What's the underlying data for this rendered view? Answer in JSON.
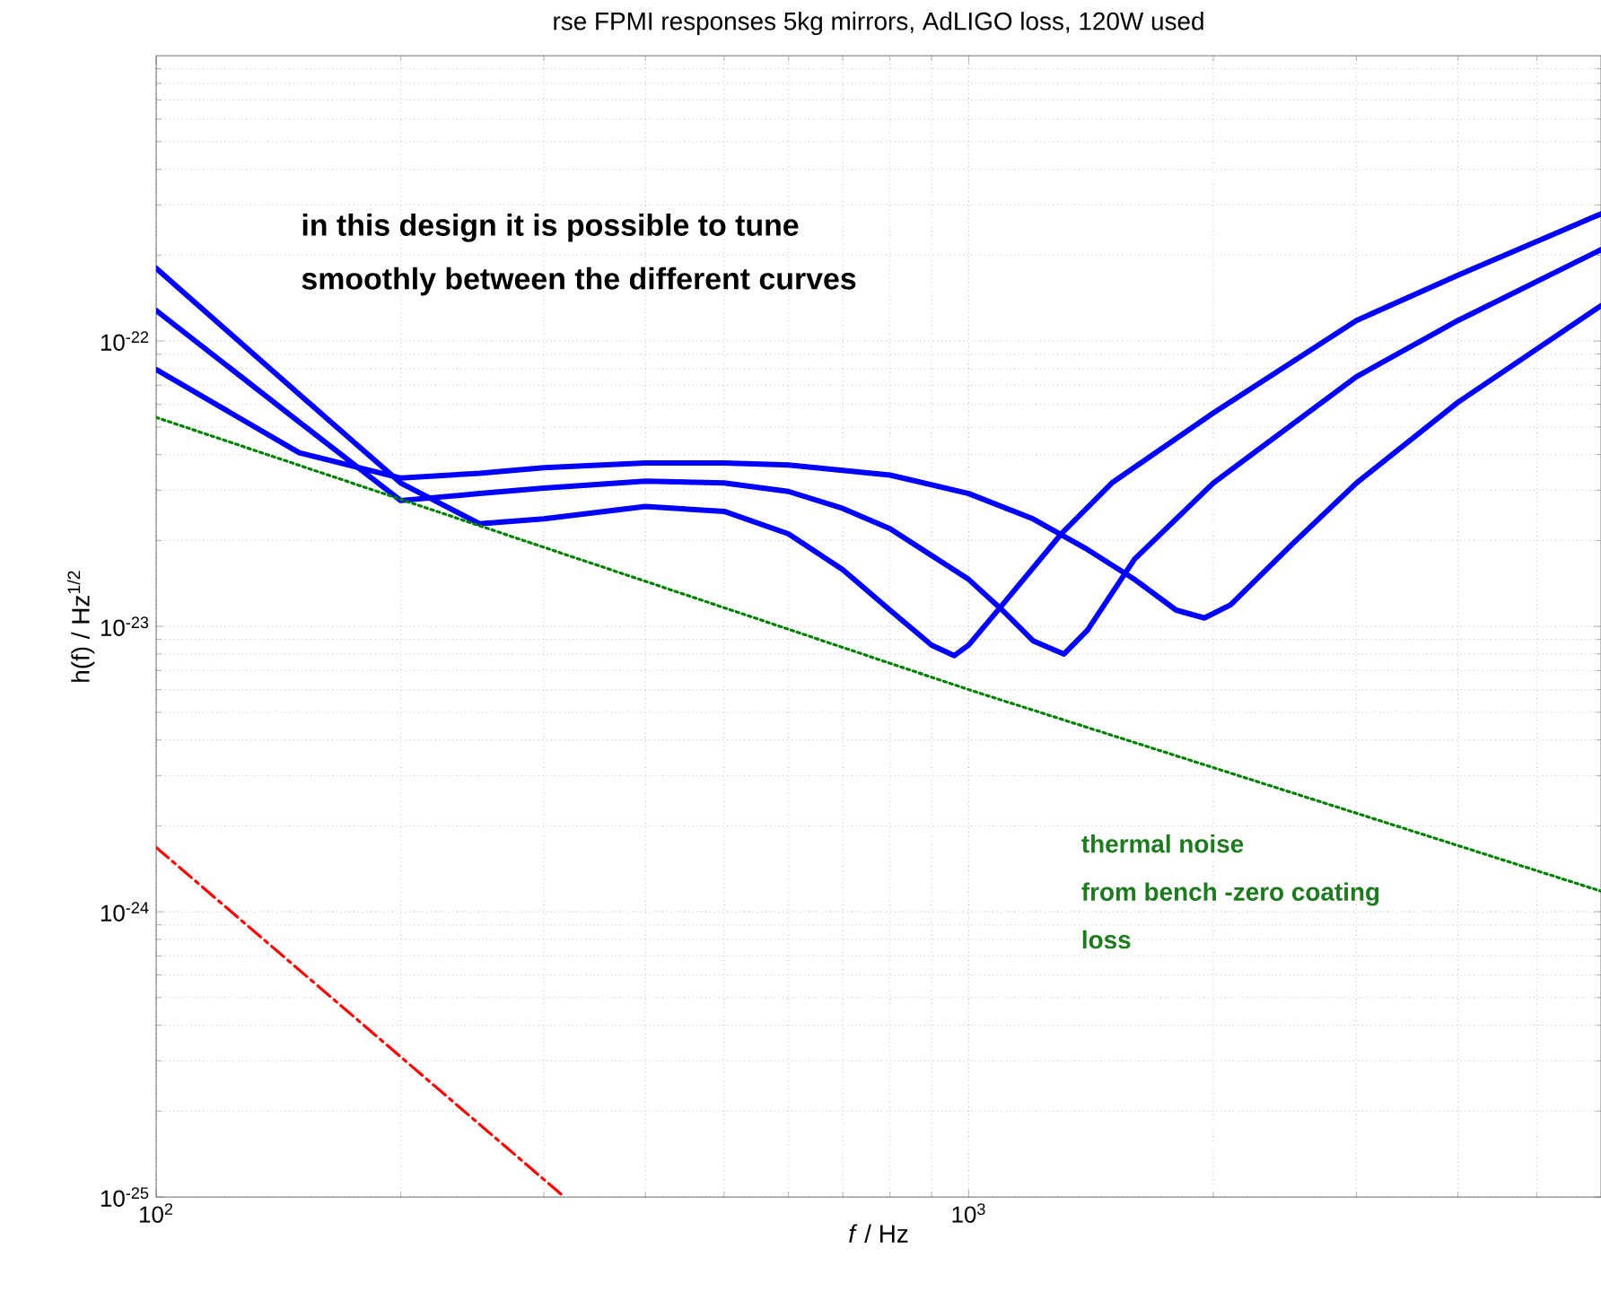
{
  "chart_data": {
    "type": "line",
    "title": "rse FPMI responses 5kg mirrors, AdLIGO loss, 120W used",
    "xlabel": "*f* / Hz",
    "ylabel": "h(f) / Hz$^{1/2}$",
    "annotations": [
      "in this design it is possible to tune",
      "smoothly between the different curves",
      "thermal noise",
      "from bench -zero coating",
      "loss"
    ],
    "log": "xy",
    "grid": true,
    "marker": "none",
    "xlim": [
      100,
      6000
    ],
    "ylim": [
      1e-25,
      1e-21
    ],
    "xticks": [
      {
        "value": 100,
        "label": "10$^{2}$"
      },
      {
        "value": 1000,
        "label": "10$^{3}$"
      }
    ],
    "yticks": [
      {
        "value": 1e-25,
        "label": "10$^{-25}$"
      },
      {
        "value": 1e-24,
        "label": "10$^{-24}$"
      },
      {
        "value": 1e-23,
        "label": "10$^{-23}$"
      },
      {
        "value": 1e-22,
        "label": "10$^{-22}$"
      }
    ],
    "series": [
      {
        "color": "#0000ff",
        "line_style": "solid",
        "x": [
          100,
          150,
          200,
          250,
          300,
          400,
          500,
          600,
          700,
          800,
          900,
          960,
          1000,
          1100,
          1300,
          1500,
          2000,
          3000,
          4000,
          6000
        ],
        "values": [
          1.8e-22,
          6.5e-23,
          3.18e-23,
          2.29e-23,
          2.38e-23,
          2.63e-23,
          2.53e-23,
          2.11e-23,
          1.58e-23,
          1.14e-23,
          8.6e-24,
          7.9e-24,
          8.6e-24,
          1.19e-23,
          2.11e-23,
          3.18e-23,
          5.6e-23,
          1.18e-22,
          1.7e-22,
          2.79e-22
        ]
      },
      {
        "color": "#0000ff",
        "line_style": "solid",
        "x": [
          100,
          150,
          200,
          250,
          300,
          400,
          500,
          600,
          700,
          800,
          1000,
          1100,
          1200,
          1310,
          1400,
          1600,
          2000,
          3000,
          4000,
          6000
        ],
        "values": [
          1.28e-22,
          5.2e-23,
          2.76e-23,
          2.92e-23,
          3.05e-23,
          3.23e-23,
          3.18e-23,
          2.97e-23,
          2.59e-23,
          2.2e-23,
          1.46e-23,
          1.14e-23,
          8.9e-24,
          8e-24,
          9.7e-24,
          1.72e-23,
          3.18e-23,
          7.5e-23,
          1.18e-22,
          2.09e-22
        ]
      },
      {
        "color": "#0000ff",
        "line_style": "solid",
        "x": [
          100,
          150,
          200,
          250,
          300,
          400,
          500,
          600,
          800,
          1000,
          1200,
          1400,
          1600,
          1800,
          1950,
          2100,
          2500,
          3000,
          4000,
          6000
        ],
        "values": [
          7.95e-23,
          4.06e-23,
          3.31e-23,
          3.44e-23,
          3.6e-23,
          3.74e-23,
          3.74e-23,
          3.68e-23,
          3.39e-23,
          2.92e-23,
          2.38e-23,
          1.86e-23,
          1.46e-23,
          1.14e-23,
          1.07e-23,
          1.19e-23,
          1.94e-23,
          3.18e-23,
          6.1e-23,
          1.33e-22
        ]
      },
      {
        "color": "#008000",
        "line_style": "dotted",
        "x": [
          100,
          1000,
          6000
        ],
        "values": [
          5.4e-23,
          6e-24,
          1.18e-24
        ]
      },
      {
        "color": "#ff0000",
        "line_style": "dashdot",
        "x": [
          100,
          318
        ],
        "values": [
          1.68e-24,
          1e-25
        ]
      }
    ]
  }
}
